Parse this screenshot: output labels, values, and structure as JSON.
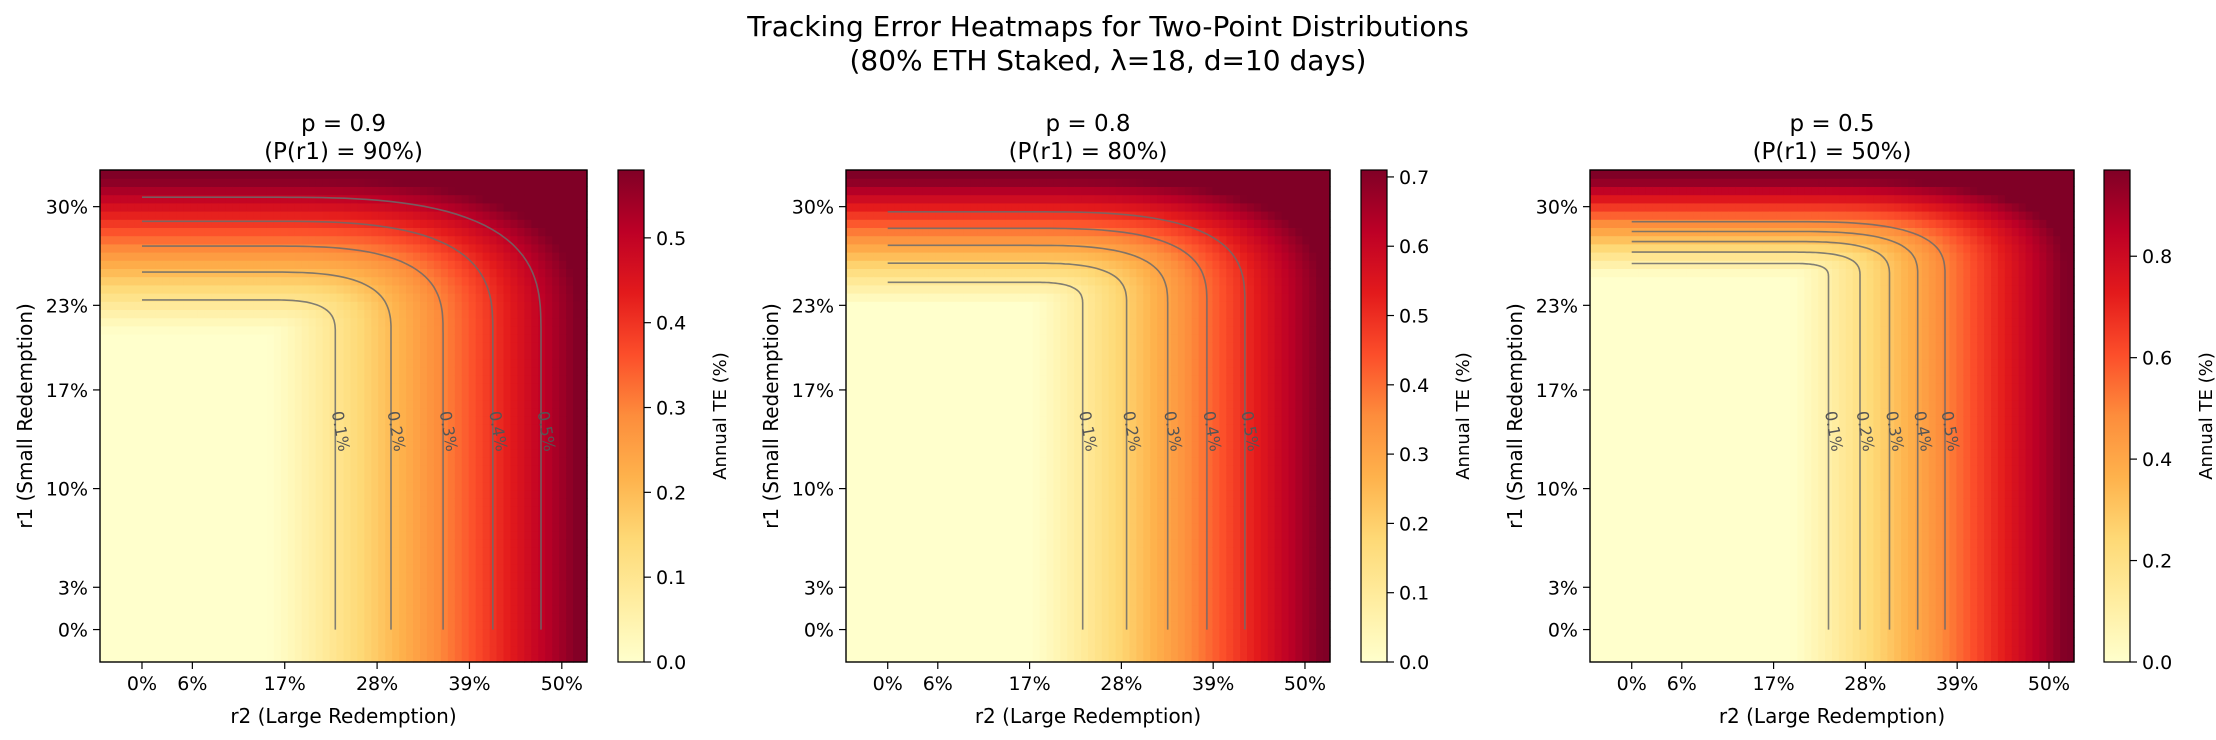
{
  "figure": {
    "title_line1": "Tracking Error Heatmaps for Two-Point Distributions",
    "title_line2": "(80% ETH Staked, λ=18, d=10 days)"
  },
  "chart_data": [
    {
      "type": "heatmap",
      "title_line1": "p = 0.9",
      "title_line2": "(P(r1) = 90%)",
      "xlabel": "r2 (Large Redemption)",
      "ylabel": "r1 (Small Redemption)",
      "x_ticks": [
        "0%",
        "6%",
        "17%",
        "28%",
        "39%",
        "50%"
      ],
      "y_ticks": [
        "0%",
        "3%",
        "10%",
        "17%",
        "23%",
        "30%"
      ],
      "x_breakpoint": 0.15,
      "y_breakpoint": 0.21,
      "max_value": 0.58,
      "colorbar_label": "Annual TE (%)",
      "colorbar_ticks": [
        "0.0",
        "0.1",
        "0.2",
        "0.3",
        "0.4",
        "0.5"
      ],
      "colorbar_values": [
        0.0,
        0.1,
        0.2,
        0.3,
        0.4,
        0.5
      ],
      "contour_labels": [
        "0.1%",
        "0.2%",
        "0.3%",
        "0.4%",
        "0.5%"
      ]
    },
    {
      "type": "heatmap",
      "title_line1": "p = 0.8",
      "title_line2": "(P(r1) = 80%)",
      "xlabel": "r2 (Large Redemption)",
      "ylabel": "r1 (Small Redemption)",
      "x_ticks": [
        "0%",
        "6%",
        "17%",
        "28%",
        "39%",
        "50%"
      ],
      "y_ticks": [
        "0%",
        "3%",
        "10%",
        "17%",
        "23%",
        "30%"
      ],
      "x_breakpoint": 0.17,
      "y_breakpoint": 0.23,
      "max_value": 0.71,
      "colorbar_label": "Annual TE (%)",
      "colorbar_ticks": [
        "0.0",
        "0.1",
        "0.2",
        "0.3",
        "0.4",
        "0.5",
        "0.6",
        "0.7"
      ],
      "colorbar_values": [
        0.0,
        0.1,
        0.2,
        0.3,
        0.4,
        0.5,
        0.6,
        0.7
      ],
      "contour_labels": [
        "0.1%",
        "0.2%",
        "0.3%",
        "0.4%",
        "0.5%"
      ]
    },
    {
      "type": "heatmap",
      "title_line1": "p = 0.5",
      "title_line2": "(P(r1) = 50%)",
      "xlabel": "r2 (Large Redemption)",
      "ylabel": "r1 (Small Redemption)",
      "x_ticks": [
        "0%",
        "6%",
        "17%",
        "28%",
        "39%",
        "50%"
      ],
      "y_ticks": [
        "0%",
        "3%",
        "10%",
        "17%",
        "23%",
        "30%"
      ],
      "x_breakpoint": 0.19,
      "y_breakpoint": 0.25,
      "max_value": 0.97,
      "colorbar_label": "Annual TE (%)",
      "colorbar_ticks": [
        "0.0",
        "0.2",
        "0.4",
        "0.6",
        "0.8"
      ],
      "colorbar_values": [
        0.0,
        0.2,
        0.4,
        0.6,
        0.8
      ],
      "contour_labels": [
        "0.1%",
        "0.2%",
        "0.3%",
        "0.4%",
        "0.5%"
      ]
    }
  ]
}
